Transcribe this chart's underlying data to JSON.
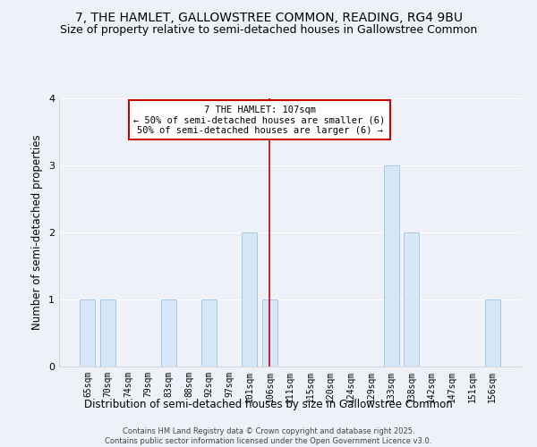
{
  "title": "7, THE HAMLET, GALLOWSTREE COMMON, READING, RG4 9BU",
  "subtitle": "Size of property relative to semi-detached houses in Gallowstree Common",
  "xlabel": "Distribution of semi-detached houses by size in Gallowstree Common",
  "ylabel": "Number of semi-detached properties",
  "footnote": "Contains HM Land Registry data © Crown copyright and database right 2025.\nContains public sector information licensed under the Open Government Licence v3.0.",
  "categories": [
    "65sqm",
    "70sqm",
    "74sqm",
    "79sqm",
    "83sqm",
    "88sqm",
    "92sqm",
    "97sqm",
    "101sqm",
    "106sqm",
    "111sqm",
    "115sqm",
    "120sqm",
    "124sqm",
    "129sqm",
    "133sqm",
    "138sqm",
    "142sqm",
    "147sqm",
    "151sqm",
    "156sqm"
  ],
  "values": [
    1,
    1,
    0,
    0,
    1,
    0,
    1,
    0,
    2,
    1,
    0,
    0,
    0,
    0,
    0,
    3,
    2,
    0,
    0,
    0,
    1
  ],
  "bar_color": "#d6e8f7",
  "bar_edge_color": "#a8c8e8",
  "vline_x": 9,
  "vline_color": "#cc0000",
  "annotation_text": "7 THE HAMLET: 107sqm\n← 50% of semi-detached houses are smaller (6)\n50% of semi-detached houses are larger (6) →",
  "annotation_box_color": "#ffffff",
  "annotation_box_edge_color": "#cc0000",
  "ylim": [
    0,
    4
  ],
  "yticks": [
    0,
    1,
    2,
    3,
    4
  ],
  "background_color": "#eef2f8",
  "plot_background_color": "#eef2f8",
  "grid_color": "#ffffff",
  "title_fontsize": 10,
  "subtitle_fontsize": 9,
  "axis_label_fontsize": 8.5,
  "tick_fontsize": 7,
  "annotation_fontsize": 7.5,
  "footnote_fontsize": 6
}
